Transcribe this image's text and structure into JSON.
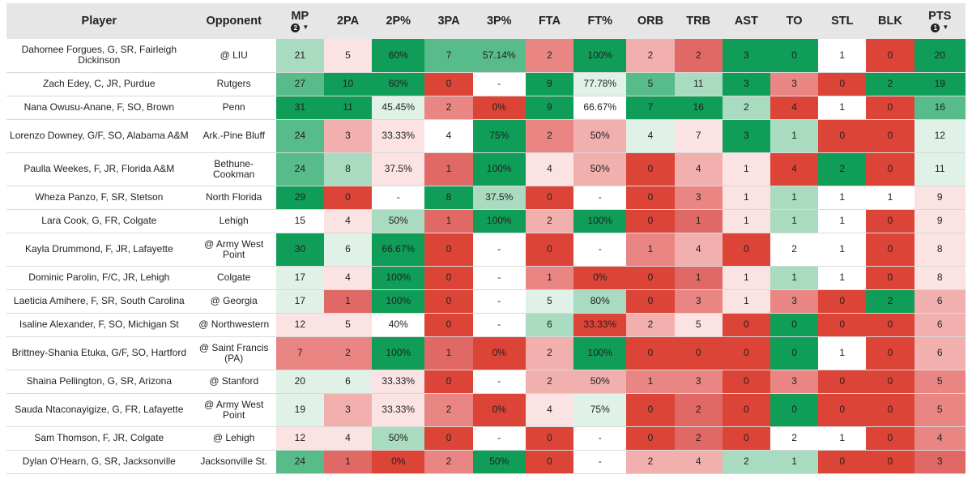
{
  "table": {
    "headers": [
      {
        "label": "Player"
      },
      {
        "label": "Opponent"
      },
      {
        "label": "MP",
        "sort_rank": "2",
        "sort_dir": "desc"
      },
      {
        "label": "2PA"
      },
      {
        "label": "2P%"
      },
      {
        "label": "3PA"
      },
      {
        "label": "3P%"
      },
      {
        "label": "FTA"
      },
      {
        "label": "FT%"
      },
      {
        "label": "ORB"
      },
      {
        "label": "TRB"
      },
      {
        "label": "AST"
      },
      {
        "label": "TO"
      },
      {
        "label": "STL"
      },
      {
        "label": "BLK"
      },
      {
        "label": "PTS",
        "sort_rank": "1",
        "sort_dir": "desc"
      }
    ],
    "colors": {
      "G3": "#0f9d58",
      "G2": "#57bb8a",
      "G1": "#a8dbbf",
      "G0": "#e0f2e8",
      "W": "#ffffff",
      "R0": "#fbe3e3",
      "R1": "#f1b0ae",
      "R2": "#e98582",
      "R3": "#e06965",
      "R4": "#db4437"
    },
    "rows": [
      {
        "tall": true,
        "cells": [
          {
            "t": "Dahomee Forgues, G, SR, Fairleigh Dickinson"
          },
          {
            "t": "@ LIU"
          },
          {
            "t": "21",
            "c": "G1"
          },
          {
            "t": "5",
            "c": "R0"
          },
          {
            "t": "60%",
            "c": "G3"
          },
          {
            "t": "7",
            "c": "G2"
          },
          {
            "t": "57.14%",
            "c": "G2"
          },
          {
            "t": "2",
            "c": "R2"
          },
          {
            "t": "100%",
            "c": "G3"
          },
          {
            "t": "2",
            "c": "R1"
          },
          {
            "t": "2",
            "c": "R3"
          },
          {
            "t": "3",
            "c": "G3"
          },
          {
            "t": "0",
            "c": "G3"
          },
          {
            "t": "1",
            "c": "W"
          },
          {
            "t": "0",
            "c": "R4"
          },
          {
            "t": "20",
            "c": "G3"
          }
        ]
      },
      {
        "tall": false,
        "cells": [
          {
            "t": "Zach Edey, C, JR, Purdue"
          },
          {
            "t": "Rutgers"
          },
          {
            "t": "27",
            "c": "G2"
          },
          {
            "t": "10",
            "c": "G3"
          },
          {
            "t": "60%",
            "c": "G3"
          },
          {
            "t": "0",
            "c": "R4"
          },
          {
            "t": "-",
            "c": "W"
          },
          {
            "t": "9",
            "c": "G3"
          },
          {
            "t": "77.78%",
            "c": "G0"
          },
          {
            "t": "5",
            "c": "G2"
          },
          {
            "t": "11",
            "c": "G1"
          },
          {
            "t": "3",
            "c": "G3"
          },
          {
            "t": "3",
            "c": "R2"
          },
          {
            "t": "0",
            "c": "R4"
          },
          {
            "t": "2",
            "c": "G3"
          },
          {
            "t": "19",
            "c": "G3"
          }
        ]
      },
      {
        "tall": false,
        "cells": [
          {
            "t": "Nana Owusu-Anane, F, SO, Brown"
          },
          {
            "t": "Penn"
          },
          {
            "t": "31",
            "c": "G3"
          },
          {
            "t": "11",
            "c": "G3"
          },
          {
            "t": "45.45%",
            "c": "G0"
          },
          {
            "t": "2",
            "c": "R2"
          },
          {
            "t": "0%",
            "c": "R4"
          },
          {
            "t": "9",
            "c": "G3"
          },
          {
            "t": "66.67%",
            "c": "W"
          },
          {
            "t": "7",
            "c": "G3"
          },
          {
            "t": "16",
            "c": "G3"
          },
          {
            "t": "2",
            "c": "G1"
          },
          {
            "t": "4",
            "c": "R4"
          },
          {
            "t": "1",
            "c": "W"
          },
          {
            "t": "0",
            "c": "R4"
          },
          {
            "t": "16",
            "c": "G2"
          }
        ]
      },
      {
        "tall": true,
        "cells": [
          {
            "t": "Lorenzo Downey, G/F, SO, Alabama A&M"
          },
          {
            "t": "Ark.-Pine Bluff"
          },
          {
            "t": "24",
            "c": "G2"
          },
          {
            "t": "3",
            "c": "R1"
          },
          {
            "t": "33.33%",
            "c": "R0"
          },
          {
            "t": "4",
            "c": "W"
          },
          {
            "t": "75%",
            "c": "G3"
          },
          {
            "t": "2",
            "c": "R2"
          },
          {
            "t": "50%",
            "c": "R1"
          },
          {
            "t": "4",
            "c": "G0"
          },
          {
            "t": "7",
            "c": "R0"
          },
          {
            "t": "3",
            "c": "G3"
          },
          {
            "t": "1",
            "c": "G1"
          },
          {
            "t": "0",
            "c": "R4"
          },
          {
            "t": "0",
            "c": "R4"
          },
          {
            "t": "12",
            "c": "G0"
          }
        ]
      },
      {
        "tall": true,
        "cells": [
          {
            "t": "Paulla Weekes, F, JR, Florida A&M"
          },
          {
            "t": "Bethune-Cookman"
          },
          {
            "t": "24",
            "c": "G2"
          },
          {
            "t": "8",
            "c": "G1"
          },
          {
            "t": "37.5%",
            "c": "R0"
          },
          {
            "t": "1",
            "c": "R3"
          },
          {
            "t": "100%",
            "c": "G3"
          },
          {
            "t": "4",
            "c": "R0"
          },
          {
            "t": "50%",
            "c": "R1"
          },
          {
            "t": "0",
            "c": "R4"
          },
          {
            "t": "4",
            "c": "R1"
          },
          {
            "t": "1",
            "c": "R0"
          },
          {
            "t": "4",
            "c": "R4"
          },
          {
            "t": "2",
            "c": "G3"
          },
          {
            "t": "0",
            "c": "R4"
          },
          {
            "t": "11",
            "c": "G0"
          }
        ]
      },
      {
        "tall": false,
        "cells": [
          {
            "t": "Wheza Panzo, F, SR, Stetson"
          },
          {
            "t": "North Florida"
          },
          {
            "t": "29",
            "c": "G3"
          },
          {
            "t": "0",
            "c": "R4"
          },
          {
            "t": "-",
            "c": "W"
          },
          {
            "t": "8",
            "c": "G3"
          },
          {
            "t": "37.5%",
            "c": "G1"
          },
          {
            "t": "0",
            "c": "R4"
          },
          {
            "t": "-",
            "c": "W"
          },
          {
            "t": "0",
            "c": "R4"
          },
          {
            "t": "3",
            "c": "R2"
          },
          {
            "t": "1",
            "c": "R0"
          },
          {
            "t": "1",
            "c": "G1"
          },
          {
            "t": "1",
            "c": "W"
          },
          {
            "t": "1",
            "c": "W"
          },
          {
            "t": "9",
            "c": "R0"
          }
        ]
      },
      {
        "tall": false,
        "cells": [
          {
            "t": "Lara Cook, G, FR, Colgate"
          },
          {
            "t": "Lehigh"
          },
          {
            "t": "15",
            "c": "W"
          },
          {
            "t": "4",
            "c": "R0"
          },
          {
            "t": "50%",
            "c": "G1"
          },
          {
            "t": "1",
            "c": "R3"
          },
          {
            "t": "100%",
            "c": "G3"
          },
          {
            "t": "2",
            "c": "R1"
          },
          {
            "t": "100%",
            "c": "G3"
          },
          {
            "t": "0",
            "c": "R4"
          },
          {
            "t": "1",
            "c": "R3"
          },
          {
            "t": "1",
            "c": "R0"
          },
          {
            "t": "1",
            "c": "G1"
          },
          {
            "t": "1",
            "c": "W"
          },
          {
            "t": "0",
            "c": "R4"
          },
          {
            "t": "9",
            "c": "R0"
          }
        ]
      },
      {
        "tall": true,
        "cells": [
          {
            "t": "Kayla Drummond, F, JR, Lafayette"
          },
          {
            "t": "@ Army West Point"
          },
          {
            "t": "30",
            "c": "G3"
          },
          {
            "t": "6",
            "c": "G0"
          },
          {
            "t": "66.67%",
            "c": "G3"
          },
          {
            "t": "0",
            "c": "R4"
          },
          {
            "t": "-",
            "c": "W"
          },
          {
            "t": "0",
            "c": "R4"
          },
          {
            "t": "-",
            "c": "W"
          },
          {
            "t": "1",
            "c": "R2"
          },
          {
            "t": "4",
            "c": "R1"
          },
          {
            "t": "0",
            "c": "R4"
          },
          {
            "t": "2",
            "c": "W"
          },
          {
            "t": "1",
            "c": "W"
          },
          {
            "t": "0",
            "c": "R4"
          },
          {
            "t": "8",
            "c": "R0"
          }
        ]
      },
      {
        "tall": false,
        "cells": [
          {
            "t": "Dominic Parolin, F/C, JR, Lehigh"
          },
          {
            "t": "Colgate"
          },
          {
            "t": "17",
            "c": "G0"
          },
          {
            "t": "4",
            "c": "R0"
          },
          {
            "t": "100%",
            "c": "G3"
          },
          {
            "t": "0",
            "c": "R4"
          },
          {
            "t": "-",
            "c": "W"
          },
          {
            "t": "1",
            "c": "R2"
          },
          {
            "t": "0%",
            "c": "R4"
          },
          {
            "t": "0",
            "c": "R4"
          },
          {
            "t": "1",
            "c": "R3"
          },
          {
            "t": "1",
            "c": "R0"
          },
          {
            "t": "1",
            "c": "G1"
          },
          {
            "t": "1",
            "c": "W"
          },
          {
            "t": "0",
            "c": "R4"
          },
          {
            "t": "8",
            "c": "R0"
          }
        ]
      },
      {
        "tall": false,
        "cells": [
          {
            "t": "Laeticia Amihere, F, SR, South Carolina"
          },
          {
            "t": "@ Georgia"
          },
          {
            "t": "17",
            "c": "G0"
          },
          {
            "t": "1",
            "c": "R3"
          },
          {
            "t": "100%",
            "c": "G3"
          },
          {
            "t": "0",
            "c": "R4"
          },
          {
            "t": "-",
            "c": "W"
          },
          {
            "t": "5",
            "c": "G0"
          },
          {
            "t": "80%",
            "c": "G1"
          },
          {
            "t": "0",
            "c": "R4"
          },
          {
            "t": "3",
            "c": "R2"
          },
          {
            "t": "1",
            "c": "R0"
          },
          {
            "t": "3",
            "c": "R2"
          },
          {
            "t": "0",
            "c": "R4"
          },
          {
            "t": "2",
            "c": "G3"
          },
          {
            "t": "6",
            "c": "R1"
          }
        ]
      },
      {
        "tall": false,
        "cells": [
          {
            "t": "Isaline Alexander, F, SO, Michigan St"
          },
          {
            "t": "@ Northwestern"
          },
          {
            "t": "12",
            "c": "R0"
          },
          {
            "t": "5",
            "c": "R0"
          },
          {
            "t": "40%",
            "c": "W"
          },
          {
            "t": "0",
            "c": "R4"
          },
          {
            "t": "-",
            "c": "W"
          },
          {
            "t": "6",
            "c": "G1"
          },
          {
            "t": "33.33%",
            "c": "R4"
          },
          {
            "t": "2",
            "c": "R1"
          },
          {
            "t": "5",
            "c": "R0"
          },
          {
            "t": "0",
            "c": "R4"
          },
          {
            "t": "0",
            "c": "G3"
          },
          {
            "t": "0",
            "c": "R4"
          },
          {
            "t": "0",
            "c": "R4"
          },
          {
            "t": "6",
            "c": "R1"
          }
        ]
      },
      {
        "tall": true,
        "cells": [
          {
            "t": "Brittney-Shania Etuka, G/F, SO, Hartford"
          },
          {
            "t": "@ Saint Francis (PA)"
          },
          {
            "t": "7",
            "c": "R2"
          },
          {
            "t": "2",
            "c": "R2"
          },
          {
            "t": "100%",
            "c": "G3"
          },
          {
            "t": "1",
            "c": "R3"
          },
          {
            "t": "0%",
            "c": "R4"
          },
          {
            "t": "2",
            "c": "R1"
          },
          {
            "t": "100%",
            "c": "G3"
          },
          {
            "t": "0",
            "c": "R4"
          },
          {
            "t": "0",
            "c": "R4"
          },
          {
            "t": "0",
            "c": "R4"
          },
          {
            "t": "0",
            "c": "G3"
          },
          {
            "t": "1",
            "c": "W"
          },
          {
            "t": "0",
            "c": "R4"
          },
          {
            "t": "6",
            "c": "R1"
          }
        ]
      },
      {
        "tall": false,
        "cells": [
          {
            "t": "Shaina Pellington, G, SR, Arizona"
          },
          {
            "t": "@ Stanford"
          },
          {
            "t": "20",
            "c": "G0"
          },
          {
            "t": "6",
            "c": "G0"
          },
          {
            "t": "33.33%",
            "c": "R0"
          },
          {
            "t": "0",
            "c": "R4"
          },
          {
            "t": "-",
            "c": "W"
          },
          {
            "t": "2",
            "c": "R1"
          },
          {
            "t": "50%",
            "c": "R1"
          },
          {
            "t": "1",
            "c": "R2"
          },
          {
            "t": "3",
            "c": "R2"
          },
          {
            "t": "0",
            "c": "R4"
          },
          {
            "t": "3",
            "c": "R2"
          },
          {
            "t": "0",
            "c": "R4"
          },
          {
            "t": "0",
            "c": "R4"
          },
          {
            "t": "5",
            "c": "R2"
          }
        ]
      },
      {
        "tall": true,
        "cells": [
          {
            "t": "Sauda Ntaconayigize, G, FR, Lafayette"
          },
          {
            "t": "@ Army West Point"
          },
          {
            "t": "19",
            "c": "G0"
          },
          {
            "t": "3",
            "c": "R1"
          },
          {
            "t": "33.33%",
            "c": "R0"
          },
          {
            "t": "2",
            "c": "R2"
          },
          {
            "t": "0%",
            "c": "R4"
          },
          {
            "t": "4",
            "c": "R0"
          },
          {
            "t": "75%",
            "c": "G0"
          },
          {
            "t": "0",
            "c": "R4"
          },
          {
            "t": "2",
            "c": "R3"
          },
          {
            "t": "0",
            "c": "R4"
          },
          {
            "t": "0",
            "c": "G3"
          },
          {
            "t": "0",
            "c": "R4"
          },
          {
            "t": "0",
            "c": "R4"
          },
          {
            "t": "5",
            "c": "R2"
          }
        ]
      },
      {
        "tall": false,
        "cells": [
          {
            "t": "Sam Thomson, F, JR, Colgate"
          },
          {
            "t": "@ Lehigh"
          },
          {
            "t": "12",
            "c": "R0"
          },
          {
            "t": "4",
            "c": "R0"
          },
          {
            "t": "50%",
            "c": "G1"
          },
          {
            "t": "0",
            "c": "R4"
          },
          {
            "t": "-",
            "c": "W"
          },
          {
            "t": "0",
            "c": "R4"
          },
          {
            "t": "-",
            "c": "W"
          },
          {
            "t": "0",
            "c": "R4"
          },
          {
            "t": "2",
            "c": "R3"
          },
          {
            "t": "0",
            "c": "R4"
          },
          {
            "t": "2",
            "c": "W"
          },
          {
            "t": "1",
            "c": "W"
          },
          {
            "t": "0",
            "c": "R4"
          },
          {
            "t": "4",
            "c": "R2"
          }
        ]
      },
      {
        "tall": false,
        "cells": [
          {
            "t": "Dylan O'Hearn, G, SR, Jacksonville"
          },
          {
            "t": "Jacksonville St."
          },
          {
            "t": "24",
            "c": "G2"
          },
          {
            "t": "1",
            "c": "R3"
          },
          {
            "t": "0%",
            "c": "R4"
          },
          {
            "t": "2",
            "c": "R2"
          },
          {
            "t": "50%",
            "c": "G3"
          },
          {
            "t": "0",
            "c": "R4"
          },
          {
            "t": "-",
            "c": "W"
          },
          {
            "t": "2",
            "c": "R1"
          },
          {
            "t": "4",
            "c": "R1"
          },
          {
            "t": "2",
            "c": "G1"
          },
          {
            "t": "1",
            "c": "G1"
          },
          {
            "t": "0",
            "c": "R4"
          },
          {
            "t": "0",
            "c": "R4"
          },
          {
            "t": "3",
            "c": "R3"
          }
        ]
      }
    ]
  }
}
